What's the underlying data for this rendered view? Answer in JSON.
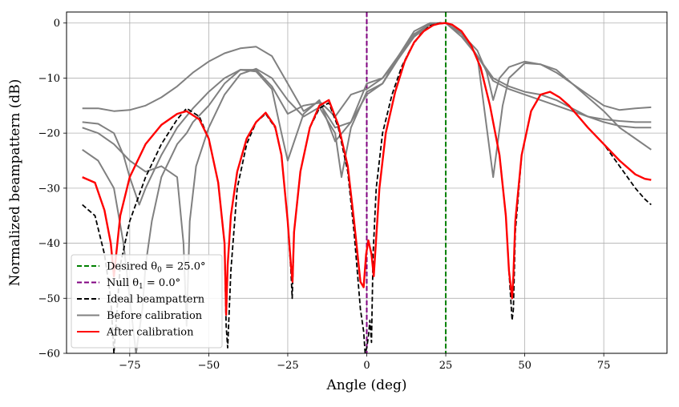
{
  "chart_data": {
    "type": "line",
    "title": "",
    "xlabel": "Angle (deg)",
    "ylabel": "Normalized beampattern (dB)",
    "xlim": [
      -95,
      95
    ],
    "ylim": [
      -60,
      2
    ],
    "xticks": [
      -75,
      -50,
      -25,
      0,
      25,
      50,
      75
    ],
    "xtick_labels": [
      "−75",
      "−50",
      "−25",
      "0",
      "25",
      "50",
      "75"
    ],
    "yticks": [
      0,
      -10,
      -20,
      -30,
      -40,
      -50,
      -60
    ],
    "ytick_labels": [
      "0",
      "−10",
      "−20",
      "−30",
      "−40",
      "−50",
      "−60"
    ],
    "grid": true,
    "legend_position": "bottom-left",
    "colors": {
      "desired": "#008000",
      "null": "#800080",
      "ideal": "#000000",
      "before": "#808080",
      "after": "#ff0000"
    },
    "legend": [
      {
        "key": "desired",
        "label": "Desired θ",
        "sub": "0",
        "rest": " = 25.0°",
        "style": "dashed"
      },
      {
        "key": "null",
        "label": "Null θ",
        "sub": "1",
        "rest": " = 0.0°",
        "style": "dashed"
      },
      {
        "key": "ideal",
        "label": "Ideal beampattern",
        "sub": "",
        "rest": "",
        "style": "dashed"
      },
      {
        "key": "before",
        "label": "Before calibration",
        "sub": "",
        "rest": "",
        "style": "solid"
      },
      {
        "key": "after",
        "label": "After calibration",
        "sub": "",
        "rest": "",
        "style": "solid"
      }
    ],
    "vlines": [
      {
        "key": "desired",
        "x": 25
      },
      {
        "key": "null",
        "x": 0
      }
    ],
    "series": [
      {
        "name": "Ideal beampattern",
        "key": "ideal",
        "x": [
          -90,
          -86,
          -83,
          -81,
          -80,
          -78,
          -75,
          -70,
          -65,
          -60,
          -57,
          -53,
          -50,
          -47,
          -45,
          -44.5,
          -44,
          -43,
          -41,
          -38,
          -35,
          -32,
          -29,
          -27,
          -25,
          -24,
          -23.6,
          -23,
          -21,
          -18,
          -15,
          -12,
          -9,
          -6,
          -4,
          -2,
          -1,
          -0.5,
          0,
          0.5,
          1,
          1.5,
          2,
          3,
          5,
          8,
          11,
          14,
          17,
          20,
          23,
          25,
          27,
          30,
          33,
          36,
          39,
          42,
          44,
          45,
          46,
          46.4,
          47,
          49,
          52,
          55,
          58,
          61,
          64,
          67,
          70,
          75,
          80,
          85,
          88,
          90
        ],
        "y": [
          -33,
          -35,
          -42,
          -50,
          -60,
          -44,
          -36,
          -28,
          -22,
          -17.5,
          -15.5,
          -17,
          -21,
          -29,
          -40,
          -55,
          -59,
          -45,
          -30,
          -22,
          -18,
          -16.5,
          -19,
          -24,
          -36,
          -45,
          -50,
          -38,
          -27,
          -19,
          -15.5,
          -14.5,
          -19,
          -27,
          -38,
          -52,
          -56,
          -60,
          -59,
          -57,
          -54,
          -58,
          -42,
          -30,
          -20,
          -13,
          -8,
          -4.5,
          -2,
          -0.5,
          0,
          0,
          -0.3,
          -1.5,
          -4,
          -8,
          -15,
          -24,
          -35,
          -45,
          -54,
          -52,
          -38,
          -24,
          -16,
          -13,
          -12.5,
          -13.5,
          -15,
          -17,
          -19,
          -22,
          -26,
          -30,
          -32,
          -33
        ]
      },
      {
        "name": "After calibration",
        "key": "after",
        "x": [
          -90,
          -86,
          -83,
          -81,
          -80,
          -78,
          -75,
          -70,
          -65,
          -60,
          -57,
          -53,
          -50,
          -47,
          -45,
          -44.5,
          -44,
          -43,
          -41,
          -38,
          -35,
          -32,
          -29,
          -27,
          -25,
          -24,
          -23.5,
          -23,
          -21,
          -18,
          -15,
          -12,
          -9,
          -6,
          -4,
          -2,
          -1,
          -0.2,
          0.5,
          1.5,
          2.2,
          3,
          4,
          6,
          9,
          12,
          15,
          18,
          21,
          23,
          25,
          27,
          30,
          33,
          36,
          39,
          42,
          44,
          45,
          46,
          46.4,
          47,
          49,
          52,
          55,
          58,
          61,
          64,
          67,
          70,
          75,
          80,
          85,
          88,
          90
        ],
        "y": [
          -28,
          -29,
          -34,
          -40,
          -46,
          -35,
          -28,
          -22,
          -18.5,
          -16.5,
          -16,
          -17.5,
          -21,
          -29,
          -40,
          -53,
          -44,
          -35,
          -27,
          -21,
          -18,
          -16.3,
          -18.8,
          -24,
          -36,
          -44,
          -47,
          -38,
          -27,
          -19,
          -15,
          -14,
          -18.5,
          -26,
          -36,
          -47,
          -48,
          -42,
          -39.5,
          -42,
          -46,
          -39,
          -30,
          -20,
          -12.5,
          -7,
          -3.5,
          -1.5,
          -0.4,
          -0.1,
          0,
          -0.3,
          -1.5,
          -4,
          -8,
          -15,
          -24,
          -35,
          -45,
          -50,
          -46,
          -36,
          -24,
          -16,
          -13,
          -12.5,
          -13.5,
          -15,
          -17,
          -19,
          -22,
          -25,
          -27.5,
          -28.3,
          -28.5
        ]
      },
      {
        "name": "Before calibration",
        "key": "before",
        "x": [
          -90,
          -85,
          -80,
          -75,
          -70,
          -65,
          -60,
          -55,
          -50,
          -45,
          -40,
          -35,
          -30,
          -25,
          -20,
          -15,
          -10,
          -5,
          0,
          5,
          10,
          15,
          20,
          25,
          30,
          35,
          38,
          40,
          42,
          45,
          50,
          55,
          60,
          65,
          70,
          75,
          80,
          85,
          90
        ],
        "y": [
          -15.5,
          -15.5,
          -16,
          -15.8,
          -15,
          -13.5,
          -11.5,
          -9,
          -7,
          -5.5,
          -4.6,
          -4.3,
          -6,
          -11,
          -16,
          -14.2,
          -17,
          -13,
          -12,
          -10,
          -6,
          -2,
          -0.2,
          0,
          -2,
          -5,
          -9,
          -14,
          -10,
          -8,
          -7,
          -7.5,
          -9,
          -11,
          -13,
          -15,
          -15.8,
          -15.5,
          -15.3
        ]
      },
      {
        "name": "Before calibration",
        "key": "before",
        "x": [
          -90,
          -85,
          -80,
          -77,
          -75,
          -72,
          -70,
          -65,
          -60,
          -55,
          -50,
          -45,
          -40,
          -35,
          -30,
          -25,
          -20,
          -15,
          -10,
          -5,
          0,
          5,
          10,
          15,
          20,
          25,
          30,
          35,
          40,
          45,
          50,
          55,
          60,
          65,
          70,
          75,
          80,
          85,
          90
        ],
        "y": [
          -18,
          -18.3,
          -20,
          -24,
          -28,
          -33,
          -30,
          -24,
          -19,
          -15.5,
          -12.5,
          -10,
          -8.5,
          -8.5,
          -11.5,
          -16.5,
          -15,
          -14.5,
          -19,
          -18,
          -13,
          -11,
          -6,
          -1.5,
          0,
          0,
          -2.5,
          -6,
          -10.5,
          -12,
          -13,
          -14,
          -15,
          -16,
          -17,
          -17.5,
          -17.8,
          -18,
          -18
        ]
      },
      {
        "name": "Before calibration",
        "key": "before",
        "x": [
          -90,
          -85,
          -80,
          -77,
          -75,
          -73,
          -71,
          -70,
          -68,
          -65,
          -60,
          -57,
          -55,
          -50,
          -45,
          -40,
          -35,
          -30,
          -27,
          -25,
          -20,
          -15,
          -10,
          -5,
          0,
          5,
          10,
          15,
          20,
          25,
          30,
          35,
          40,
          43,
          45,
          50,
          55,
          60,
          65,
          70,
          75,
          80,
          85,
          90
        ],
        "y": [
          -23,
          -25,
          -30,
          -40,
          -50,
          -60,
          -52,
          -44,
          -36,
          -28,
          -22,
          -20,
          -18,
          -15,
          -11,
          -8.5,
          -8.8,
          -12,
          -20,
          -25,
          -16.5,
          -14,
          -21.5,
          -18,
          -11,
          -10,
          -6.5,
          -2.5,
          -0.3,
          0,
          -1.8,
          -6,
          -28,
          -15,
          -10,
          -7.3,
          -7.5,
          -8.5,
          -11,
          -13.5,
          -16,
          -19,
          -21,
          -23
        ]
      },
      {
        "name": "Before calibration",
        "key": "before",
        "x": [
          -90,
          -85,
          -80,
          -75,
          -70,
          -65,
          -60,
          -58,
          -57,
          -56,
          -54,
          -50,
          -45,
          -40,
          -35,
          -30,
          -25,
          -20,
          -15,
          -10,
          -8,
          -5,
          0,
          5,
          10,
          15,
          20,
          25,
          30,
          35,
          40,
          45,
          50,
          55,
          60,
          65,
          70,
          75,
          80,
          85,
          90
        ],
        "y": [
          -19,
          -20,
          -22,
          -25,
          -27,
          -26,
          -28,
          -40,
          -55,
          -36,
          -26,
          -19,
          -13,
          -9.3,
          -8.3,
          -10,
          -14,
          -17,
          -15.3,
          -20,
          -28,
          -19,
          -12.5,
          -11,
          -6.5,
          -2.2,
          -0.2,
          0,
          -2,
          -6,
          -10,
          -11.5,
          -12.5,
          -13,
          -14,
          -15.5,
          -17,
          -18,
          -18.7,
          -19,
          -19
        ]
      }
    ]
  }
}
